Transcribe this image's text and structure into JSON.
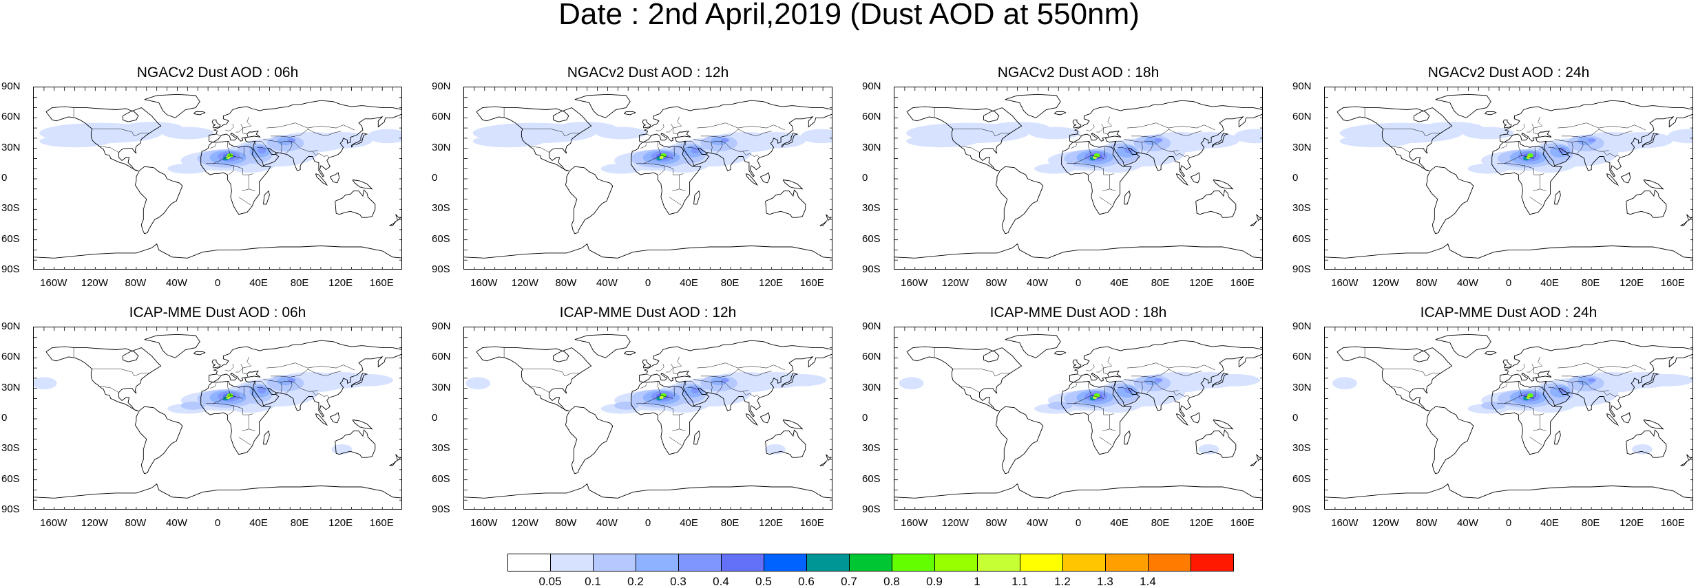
{
  "title": "Date : 2nd April,2019 (Dust AOD at 550nm)",
  "panels": [
    {
      "title": "NGACv2 Dust AOD : 06h",
      "model": "NGACv2",
      "hour": "06h"
    },
    {
      "title": "NGACv2 Dust AOD : 12h",
      "model": "NGACv2",
      "hour": "12h"
    },
    {
      "title": "NGACv2 Dust AOD : 18h",
      "model": "NGACv2",
      "hour": "18h"
    },
    {
      "title": "NGACv2 Dust AOD : 24h",
      "model": "NGACv2",
      "hour": "24h"
    },
    {
      "title": "ICAP-MME Dust AOD : 06h",
      "model": "ICAP-MME",
      "hour": "06h"
    },
    {
      "title": "ICAP-MME Dust AOD : 12h",
      "model": "ICAP-MME",
      "hour": "12h"
    },
    {
      "title": "ICAP-MME Dust AOD : 18h",
      "model": "ICAP-MME",
      "hour": "18h"
    },
    {
      "title": "ICAP-MME Dust AOD : 24h",
      "model": "ICAP-MME",
      "hour": "24h"
    }
  ],
  "lat_ticks": [
    "90N",
    "60N",
    "30N",
    "0",
    "30S",
    "60S",
    "90S"
  ],
  "lon_ticks": [
    "160W",
    "120W",
    "80W",
    "40W",
    "0",
    "40E",
    "80E",
    "120E",
    "160E"
  ],
  "colorbar": {
    "labels": [
      "0.05",
      "0.1",
      "0.2",
      "0.3",
      "0.4",
      "0.5",
      "0.6",
      "0.7",
      "0.8",
      "0.9",
      "1",
      "1.1",
      "1.2",
      "1.3",
      "1.4"
    ],
    "colors": [
      "#ffffff",
      "#d6e2ff",
      "#b5c9ff",
      "#8eb2ff",
      "#7f96ff",
      "#6370f8",
      "#0063ff",
      "#009696",
      "#00c633",
      "#63ff00",
      "#96ff00",
      "#c6ff33",
      "#ffff00",
      "#ffc600",
      "#ffa000",
      "#ff7c00",
      "#ff1900"
    ]
  }
}
